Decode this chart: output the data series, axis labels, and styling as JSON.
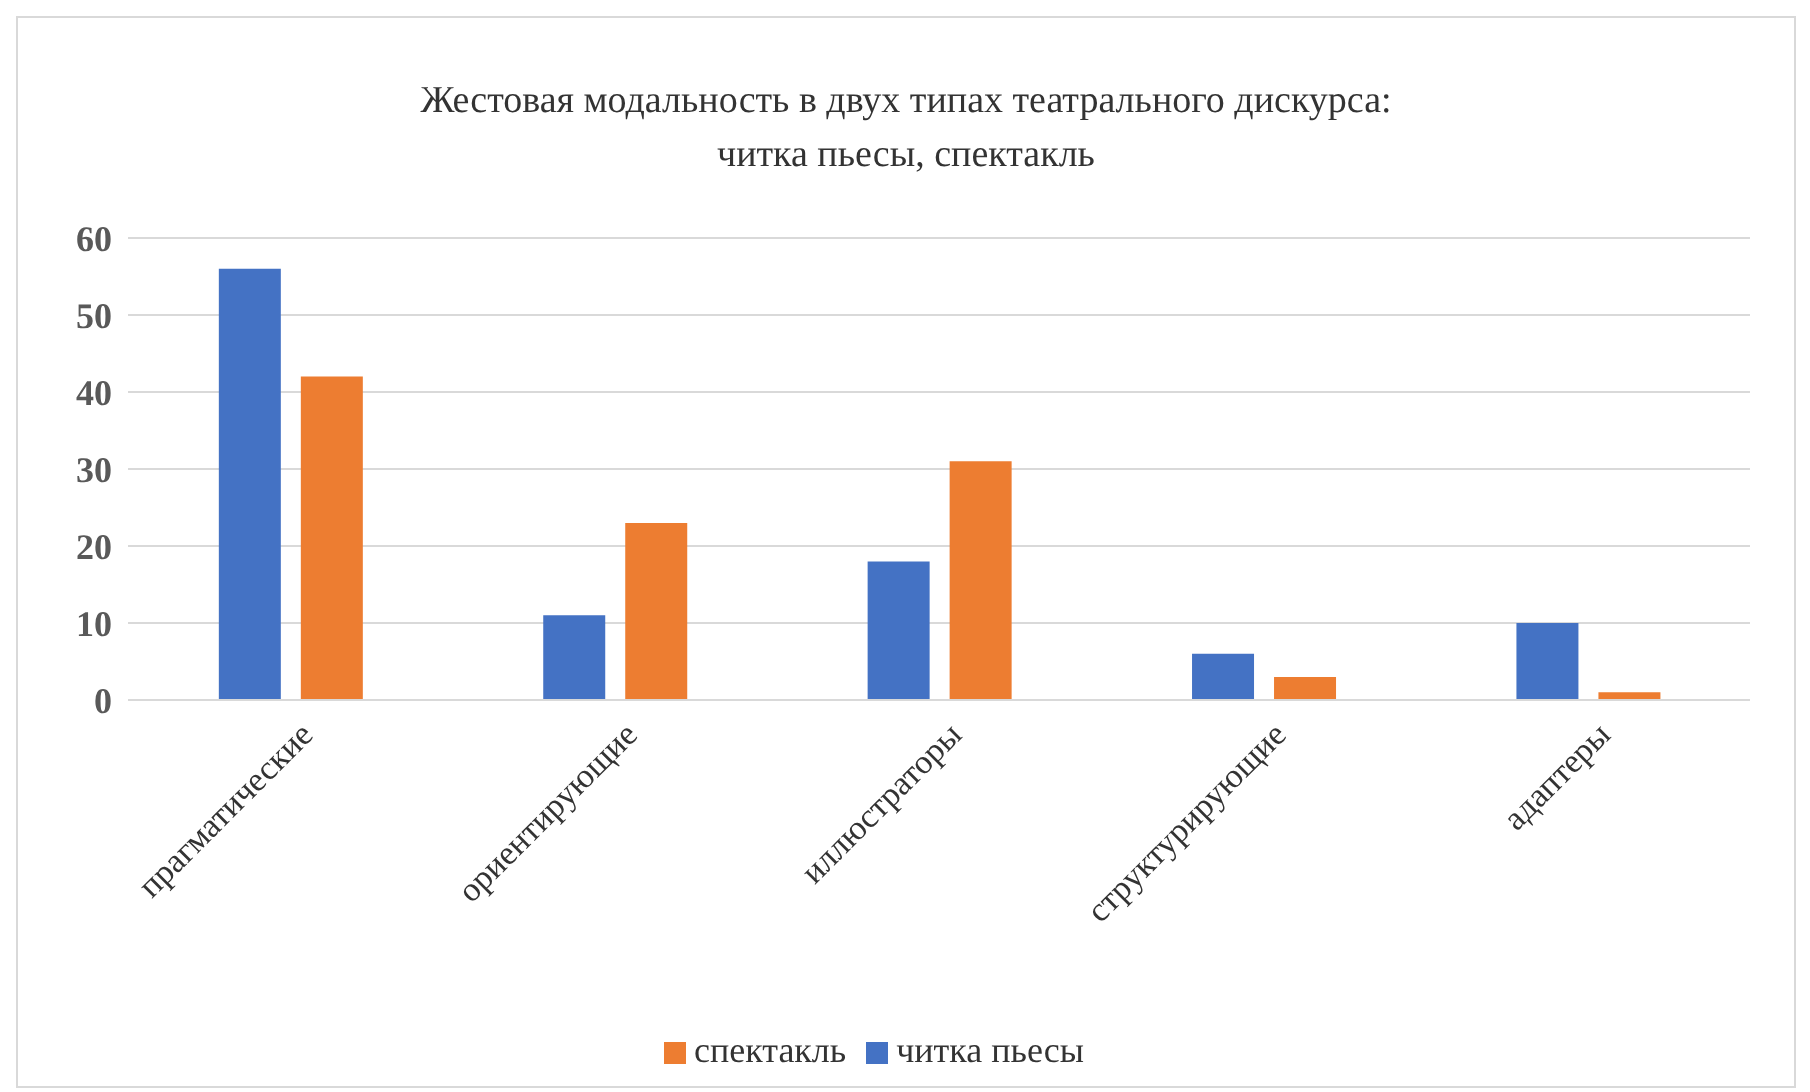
{
  "chart_data": {
    "type": "bar",
    "title": "Жестовая модальность в двух типах театрального дискурса:\nчитка пьесы, спектакль",
    "categories": [
      "прагматические",
      "ориентирующие",
      "иллюстраторы",
      "структурирующие",
      "адаптеры"
    ],
    "series": [
      {
        "name": "читка пьесы",
        "color": "#4472c4",
        "values": [
          56,
          11,
          18,
          6,
          10
        ]
      },
      {
        "name": "спектакль",
        "color": "#ed7d31",
        "values": [
          42,
          23,
          31,
          3,
          1
        ]
      }
    ],
    "ylim": [
      0,
      60
    ],
    "yticks": [
      0,
      10,
      20,
      30,
      40,
      50,
      60
    ],
    "grid": "y",
    "legend": "bottom"
  }
}
